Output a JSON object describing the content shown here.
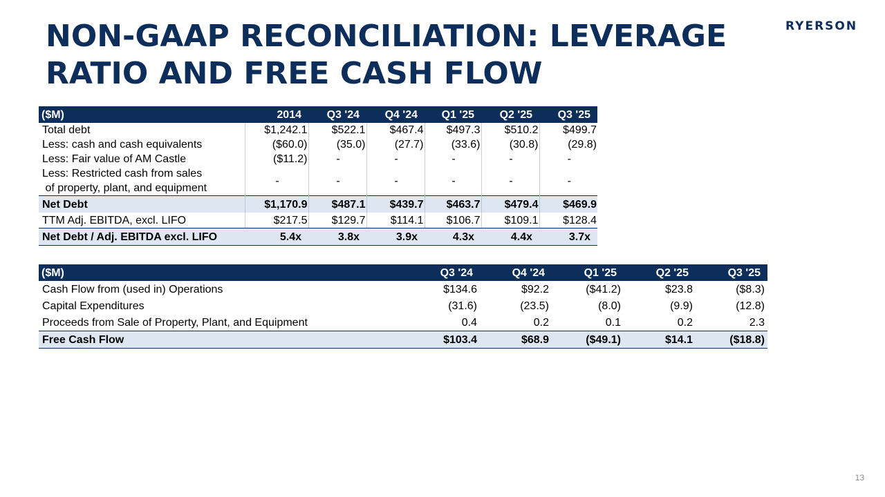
{
  "title": "NON-GAAP RECONCILIATION: LEVERAGE RATIO AND FREE CASH FLOW",
  "logo": "RYERSON",
  "page_number": "13",
  "leverage_table": {
    "header": [
      "($M)",
      "2014",
      "Q3 '24",
      "Q4 '24",
      "Q1 '25",
      "Q2 '25",
      "Q3 '25"
    ],
    "rows": {
      "total_debt": {
        "label": "Total debt",
        "values": [
          "$1,242.1",
          "$522.1",
          "$467.4",
          "$497.3",
          "$510.2",
          "$499.7"
        ]
      },
      "cash": {
        "label": "Less: cash and cash equivalents",
        "values": [
          "($60.0)",
          "(35.0)",
          "(27.7)",
          "(33.6)",
          "(30.8)",
          "(29.8)"
        ]
      },
      "castle": {
        "label": "Less: Fair value of AM Castle",
        "values": [
          "($11.2)",
          "-",
          "-",
          "-",
          "-",
          "-"
        ]
      },
      "restricted": {
        "label_line1": "Less: Restricted cash from sales",
        "label_line2": " of property, plant, and equipment",
        "values": [
          "-",
          "-",
          "-",
          "-",
          "-",
          "-"
        ]
      },
      "net_debt": {
        "label": "Net Debt",
        "values": [
          "$1,170.9",
          "$487.1",
          "$439.7",
          "$463.7",
          "$479.4",
          "$469.9"
        ]
      },
      "ttm": {
        "label": "TTM Adj. EBITDA, excl. LIFO",
        "values": [
          "$217.5",
          "$129.7",
          "$114.1",
          "$106.7",
          "$109.1",
          "$128.4"
        ]
      },
      "ratio": {
        "label": "Net Debt / Adj. EBITDA excl. LIFO",
        "values": [
          "5.4x",
          "3.8x",
          "3.9x",
          "4.3x",
          "4.4x",
          "3.7x"
        ]
      }
    }
  },
  "fcf_table": {
    "header": [
      "($M)",
      "Q3 '24",
      "Q4 '24",
      "Q1 '25",
      "Q2 '25",
      "Q3 '25"
    ],
    "rows": {
      "ops": {
        "label": "Cash Flow from (used in) Operations",
        "values": [
          "$134.6",
          "$92.2",
          "($41.2)",
          "$23.8",
          "($8.3)"
        ]
      },
      "capex": {
        "label": "Capital Expenditures",
        "values": [
          "(31.6)",
          "(23.5)",
          "(8.0)",
          "(9.9)",
          "(12.8)"
        ]
      },
      "proceeds": {
        "label": "Proceeds from Sale of Property, Plant, and Equipment",
        "values": [
          "0.4",
          "0.2",
          "0.1",
          "0.2",
          "2.3"
        ]
      },
      "fcf": {
        "label": "Free Cash Flow",
        "values": [
          "$103.4",
          "$68.9",
          "($49.1)",
          "$14.1",
          "($18.8)"
        ]
      }
    }
  }
}
